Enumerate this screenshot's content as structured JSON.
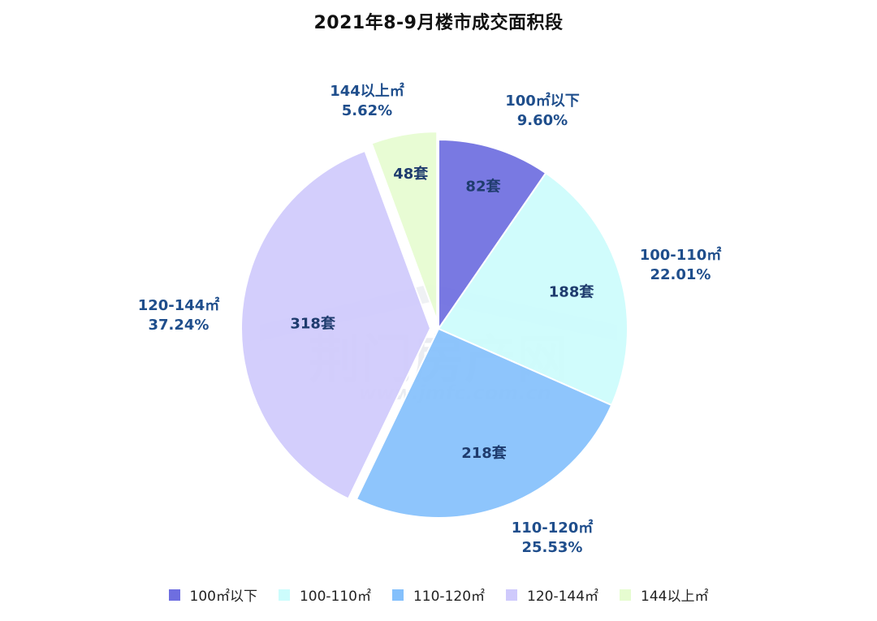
{
  "chart_data": {
    "type": "pie",
    "title": "2021年8-9月楼市成交面积段",
    "legend_position": "bottom",
    "slices": [
      {
        "name": "100㎡以下",
        "count_label": "82套",
        "value": 82,
        "percent_label": "9.60%",
        "percent": 9.6,
        "color": "#6e6ee0",
        "exploded": false
      },
      {
        "name": "100-110㎡",
        "count_label": "188套",
        "value": 188,
        "percent_label": "22.01%",
        "percent": 22.01,
        "color": "#ccfcfc",
        "exploded": false
      },
      {
        "name": "110-120㎡",
        "count_label": "218套",
        "value": 218,
        "percent_label": "25.53%",
        "percent": 25.53,
        "color": "#84c0fc",
        "exploded": false
      },
      {
        "name": "120-144㎡",
        "count_label": "318套",
        "value": 318,
        "percent_label": "37.24%",
        "percent": 37.24,
        "color": "#cfcafc",
        "exploded": true
      },
      {
        "name": "144以上㎡",
        "count_label": "48套",
        "value": 48,
        "percent_label": "5.62%",
        "percent": 5.62,
        "color": "#e6fcd0",
        "exploded": true
      }
    ]
  }
}
